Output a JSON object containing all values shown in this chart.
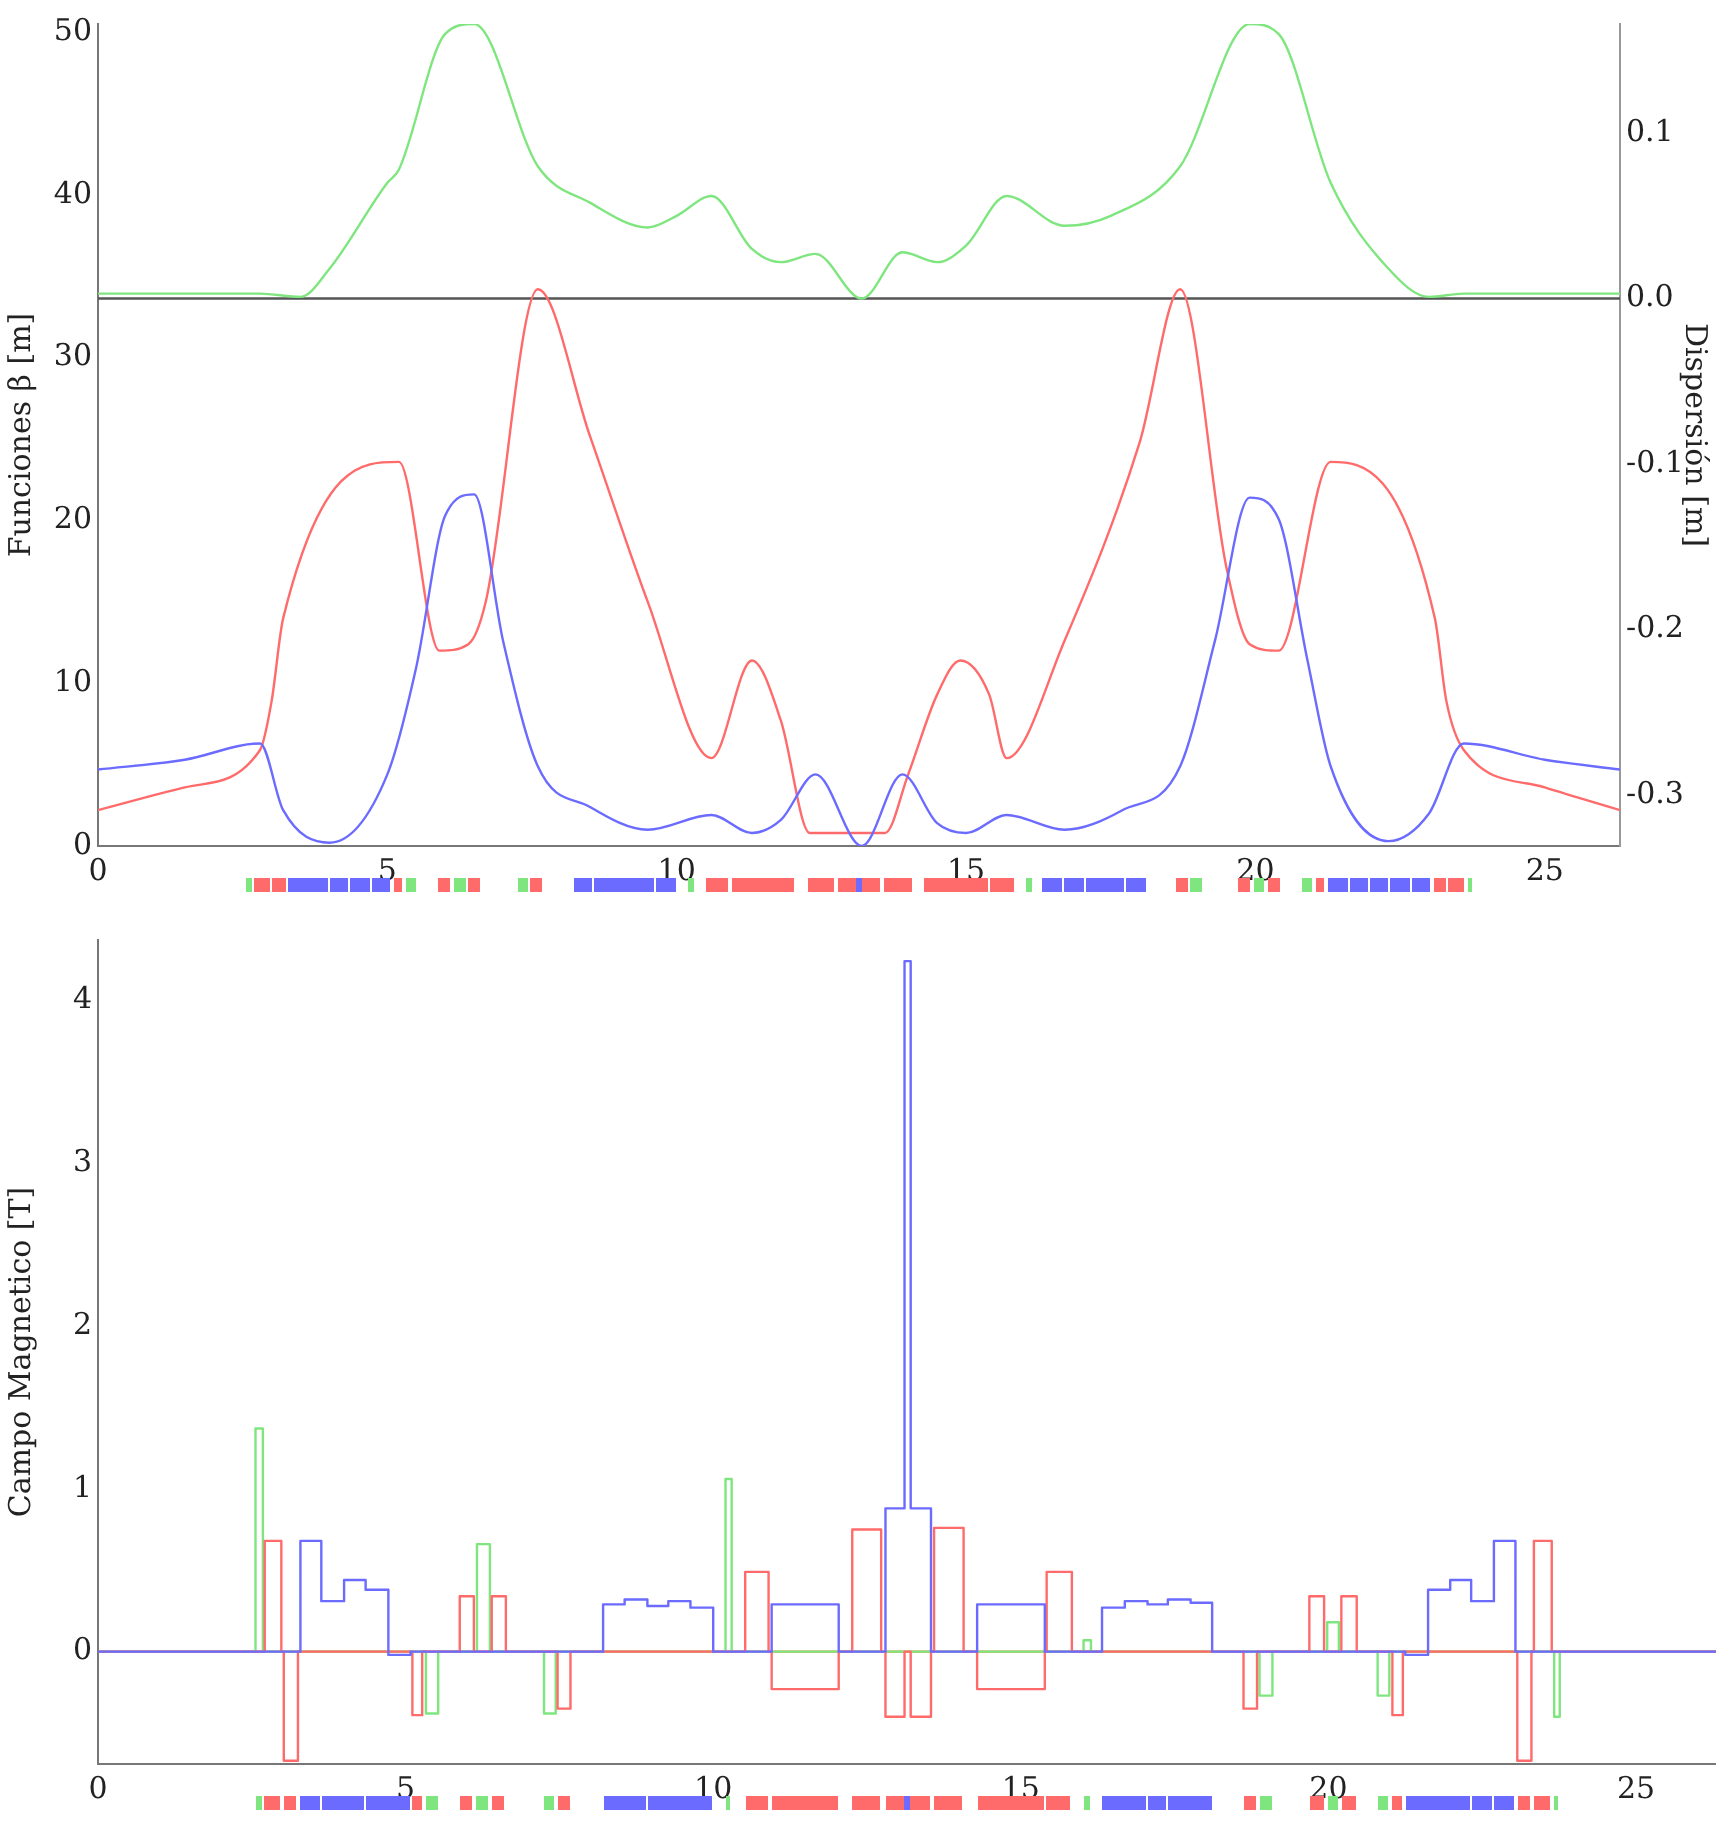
{
  "chart_data": [
    {
      "type": "line",
      "ylabel": "Funciones β [m]",
      "y2label": "Dispersión [m]",
      "grid": false,
      "legend": false,
      "xlim": [
        0,
        26.3
      ],
      "xticks": [
        0,
        5,
        10,
        15,
        20,
        25
      ],
      "ylim": [
        0,
        50.5
      ],
      "yticks": [
        0,
        10,
        20,
        30,
        40,
        50
      ],
      "y2lim": [
        -0.331,
        0.166
      ],
      "y2ticks": [
        -0.3,
        -0.2,
        -0.1,
        {
          "value": 0,
          "label": "0.0"
        },
        0.1
      ],
      "ref_lines": [
        {
          "axis": "y2",
          "value": 0,
          "label": null,
          "color": "#555555"
        }
      ],
      "series": [
        {
          "color": "#6b6bff",
          "x": [
            0,
            1.5,
            2.8,
            3.2,
            4.0,
            5.0,
            5.5,
            6.0,
            6.5,
            7.0,
            7.6,
            8.5,
            9.5,
            10.6,
            11.3,
            11.8,
            12.4,
            13.2,
            13.9,
            14.5,
            15.0,
            15.7,
            16.7,
            17.7,
            18.7,
            19.3,
            19.9,
            20.4,
            20.9,
            21.3,
            22.3,
            23.0,
            23.6,
            25.0,
            26.3
          ],
          "values": [
            4.7,
            5.3,
            6.3,
            2.2,
            0.2,
            4.4,
            11,
            20.3,
            21.6,
            12.6,
            4.9,
            2.4,
            1.0,
            1.9,
            0.8,
            1.6,
            4.4,
            0.0,
            4.4,
            1.4,
            0.8,
            1.9,
            1.0,
            2.2,
            4.9,
            12.6,
            21.4,
            20.1,
            11.4,
            4.9,
            0.3,
            2.0,
            6.3,
            5.3,
            4.7
          ]
        },
        {
          "color": "#ff6b6b",
          "x": [
            0,
            1.5,
            2.8,
            3.0,
            3.2,
            5.2,
            5.9,
            6.4,
            6.7,
            7.6,
            8.5,
            9.5,
            10.6,
            11.3,
            11.8,
            12.3,
            13.6,
            14.0,
            14.5,
            14.9,
            15.4,
            15.7,
            16.7,
            18.0,
            18.7,
            19.5,
            19.9,
            20.4,
            21.3,
            23.1,
            23.3,
            23.6,
            25.0,
            26.3
          ],
          "values": [
            2.2,
            3.6,
            5.9,
            8.9,
            14.0,
            23.6,
            12.0,
            12.4,
            15.0,
            34.2,
            25.2,
            15.0,
            5.4,
            11.4,
            7.7,
            0.8,
            0.8,
            4.4,
            9.3,
            11.4,
            9.3,
            5.4,
            12.6,
            24.8,
            34.2,
            17.1,
            12.4,
            12.0,
            23.6,
            14.0,
            8.9,
            5.9,
            3.6,
            2.2
          ]
        },
        {
          "color": "#7fe67f",
          "axis": "y2",
          "x": [
            0,
            2.8,
            3.5,
            4.0,
            5.0,
            5.2,
            6.0,
            6.5,
            7.6,
            8.5,
            9.5,
            10.0,
            10.6,
            11.3,
            11.8,
            12.4,
            13.2,
            13.9,
            14.5,
            15.0,
            15.7,
            16.7,
            17.5,
            18.7,
            19.9,
            20.4,
            21.3,
            22.3,
            23.0,
            23.6,
            26.3
          ],
          "values": [
            0.003,
            0.003,
            0.001,
            0.018,
            0.07,
            0.078,
            0.16,
            0.166,
            0.08,
            0.058,
            0.043,
            0.05,
            0.062,
            0.03,
            0.022,
            0.027,
            0.0,
            0.028,
            0.022,
            0.032,
            0.062,
            0.044,
            0.05,
            0.08,
            0.166,
            0.16,
            0.07,
            0.018,
            0.001,
            0.003,
            0.003
          ]
        }
      ]
    },
    {
      "type": "step",
      "ylabel": "Campo Magnetico [T]",
      "grid": false,
      "legend": false,
      "xlim": [
        0,
        26.3
      ],
      "xticks": [
        0,
        5,
        10,
        15,
        20,
        25
      ],
      "ylim": [
        -0.69,
        4.37
      ],
      "yticks": [
        0,
        1,
        2,
        3,
        4
      ],
      "ref_lines": [
        {
          "axis": "y",
          "value": 0,
          "label": null,
          "color": "#ff8040"
        }
      ],
      "series": [
        {
          "color": "#6b6bff",
          "x": [
            0,
            3.29,
            3.63,
            4.0,
            4.35,
            4.72,
            5.08,
            8.21,
            8.56,
            8.93,
            9.27,
            9.63,
            10.0,
            10.95,
            12.04,
            12.8,
            13.11,
            13.21,
            13.54,
            14.29,
            15.39,
            16.32,
            16.69,
            17.06,
            17.39,
            17.76,
            18.11,
            21.25,
            21.62,
            21.98,
            22.32,
            22.69,
            23.04,
            26.3
          ],
          "values": [
            0,
            0.68,
            0.31,
            0.44,
            0.38,
            -0.02,
            0,
            0.29,
            0.32,
            0.28,
            0.31,
            0.27,
            0,
            0.29,
            0,
            0.88,
            4.24,
            0.88,
            0,
            0.29,
            0,
            0.27,
            0.31,
            0.29,
            0.32,
            0.3,
            0,
            -0.02,
            0.38,
            0.44,
            0.31,
            0.68,
            0,
            0
          ]
        },
        {
          "color": "#ff6b6b",
          "x": [
            0,
            2.71,
            2.98,
            3.02,
            3.25,
            5.11,
            5.27,
            5.88,
            6.11,
            6.4,
            6.63,
            7.47,
            7.68,
            10.52,
            10.9,
            10.95,
            12.04,
            12.26,
            12.73,
            12.8,
            13.11,
            13.21,
            13.54,
            13.59,
            14.07,
            14.29,
            15.39,
            15.42,
            15.83,
            18.62,
            18.84,
            19.69,
            19.93,
            20.21,
            20.46,
            21.04,
            21.21,
            23.07,
            23.3,
            23.34,
            23.63,
            26.3
          ],
          "values": [
            0,
            0.68,
            0,
            -0.67,
            0,
            -0.39,
            0,
            0.34,
            0,
            0.34,
            0,
            -0.35,
            0,
            0.49,
            0,
            -0.23,
            0,
            0.75,
            0,
            -0.4,
            0,
            -0.4,
            0,
            0.76,
            0,
            -0.23,
            0,
            0.49,
            0,
            -0.35,
            0,
            0.34,
            0,
            0.34,
            0,
            -0.39,
            0,
            -0.67,
            0,
            0.68,
            0,
            0
          ]
        },
        {
          "color": "#7fe67f",
          "x": [
            0,
            2.56,
            2.68,
            5.33,
            5.53,
            6.16,
            6.37,
            7.25,
            7.44,
            10.2,
            10.3,
            16.02,
            16.14,
            18.88,
            19.09,
            19.98,
            20.17,
            20.8,
            20.99,
            23.67,
            23.76,
            26.3
          ],
          "values": [
            0,
            1.37,
            0,
            -0.38,
            0,
            0.66,
            0,
            -0.38,
            0,
            1.06,
            0,
            0.07,
            0,
            -0.27,
            0,
            0.18,
            0,
            -0.27,
            0,
            -0.4,
            0,
            0
          ]
        }
      ]
    }
  ]
}
